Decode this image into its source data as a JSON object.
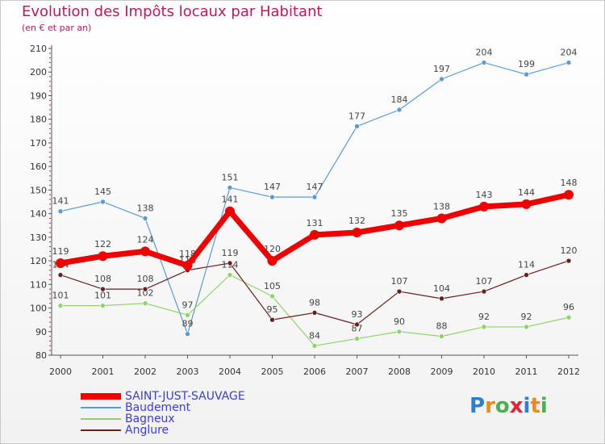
{
  "title": "Evolution des Impôts locaux par Habitant",
  "subtitle": "(en € et par an)",
  "logo": {
    "text": "Proxiti",
    "colors": [
      "#2e7fd1",
      "#e98b1e",
      "#4caf50",
      "#e2233a",
      "#2e7fd1",
      "#e98b1e",
      "#4caf50"
    ]
  },
  "chart_data": {
    "type": "line",
    "x": [
      "2000",
      "2001",
      "2002",
      "2003",
      "2004",
      "2005",
      "2006",
      "2007",
      "2008",
      "2009",
      "2010",
      "2011",
      "2012"
    ],
    "ylim": [
      80,
      210
    ],
    "yticks": [
      80,
      90,
      100,
      110,
      120,
      130,
      140,
      150,
      160,
      170,
      180,
      190,
      200,
      210
    ],
    "grid": false,
    "series": [
      {
        "name": "SAINT-JUST-SAUVAGE",
        "color": "#ee0000",
        "values": [
          119,
          122,
          124,
          118,
          141,
          120,
          131,
          132,
          135,
          138,
          143,
          144,
          148
        ],
        "emphasis": true
      },
      {
        "name": "Baudement",
        "color": "#5a9bd5",
        "values": [
          141,
          145,
          138,
          89,
          151,
          147,
          147,
          177,
          184,
          197,
          204,
          199,
          204
        ]
      },
      {
        "name": "Bagneux",
        "color": "#8fd46a",
        "values": [
          101,
          101,
          102,
          97,
          114,
          105,
          84,
          87,
          90,
          88,
          92,
          92,
          96
        ]
      },
      {
        "name": "Anglure",
        "color": "#6b2020",
        "values": [
          114,
          108,
          108,
          116,
          119,
          95,
          98,
          93,
          107,
          104,
          107,
          114,
          120
        ]
      }
    ]
  }
}
